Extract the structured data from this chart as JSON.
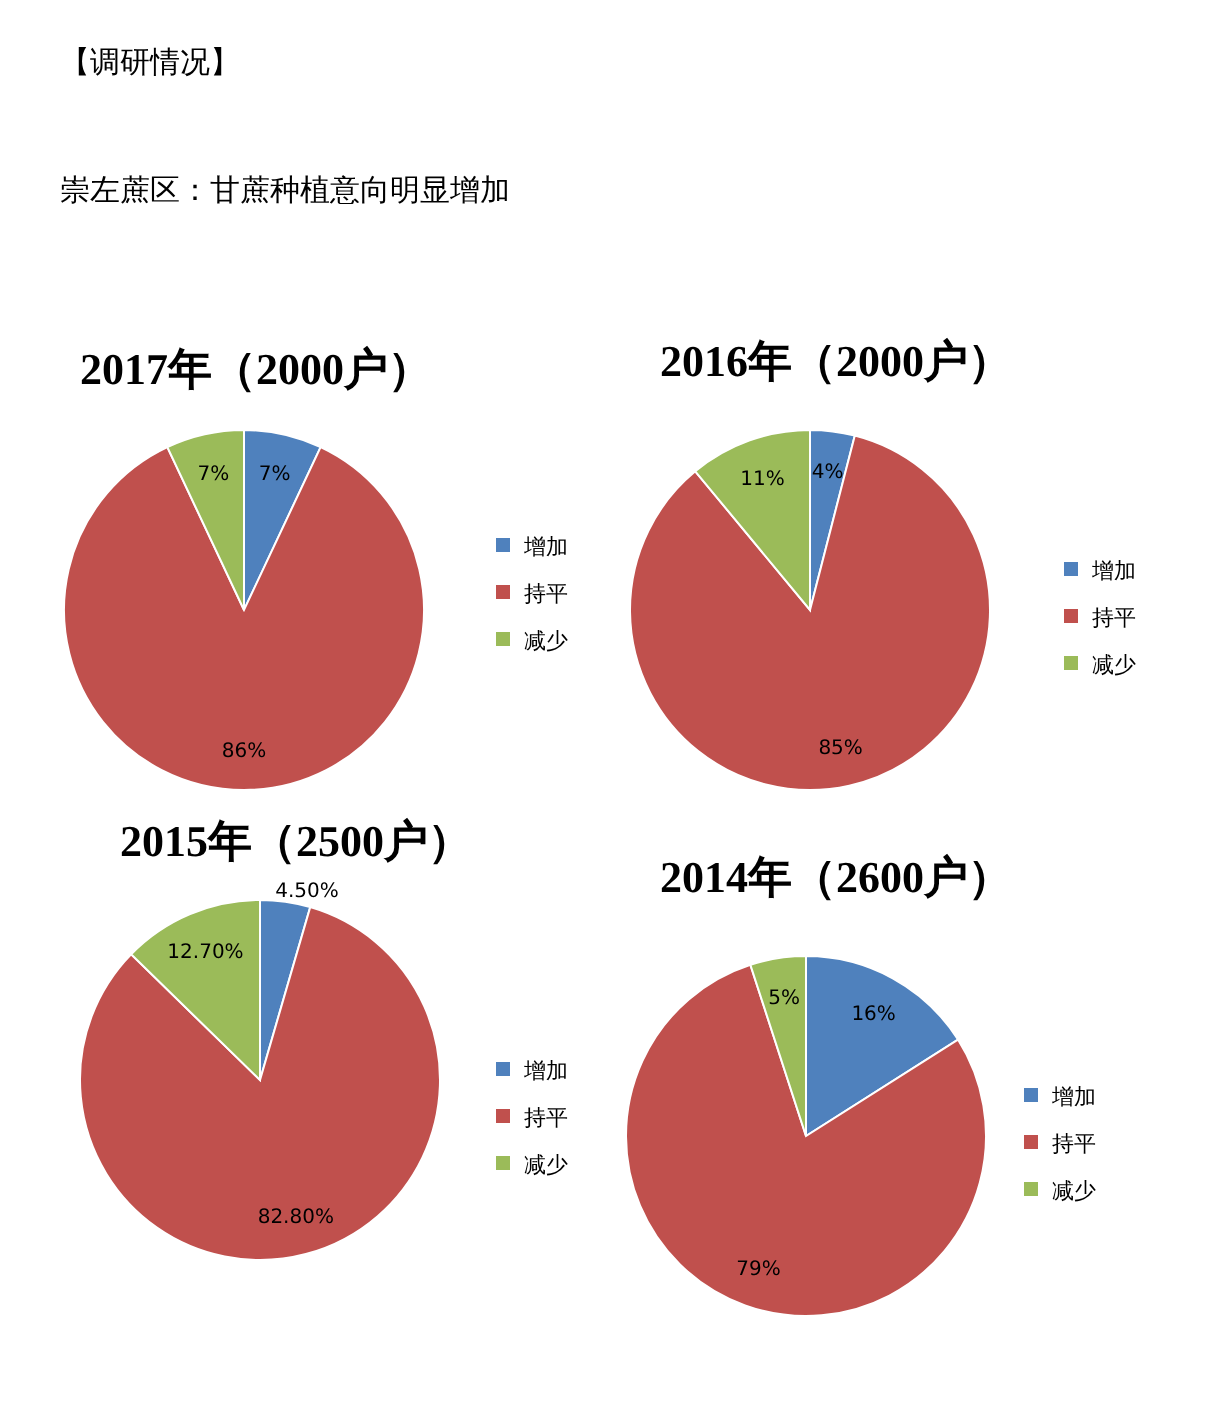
{
  "chart_data": [
    {
      "type": "other",
      "title": "【调研情况】",
      "subtitle": "崇左蔗区：甘蔗种植意向明显增加"
    },
    {
      "type": "pie",
      "title": "2017年（2000户）",
      "categories": [
        "增加",
        "持平",
        "减少"
      ],
      "values": [
        7,
        86,
        7
      ],
      "colors": [
        "#4f81bd",
        "#c0504d",
        "#9bbb59"
      ],
      "value_labels": [
        "7%",
        "86%",
        "7%"
      ],
      "legend": "right"
    },
    {
      "type": "pie",
      "title": "2016年（2000户）",
      "categories": [
        "增加",
        "持平",
        "减少"
      ],
      "values": [
        4,
        85,
        11
      ],
      "colors": [
        "#4f81bd",
        "#c0504d",
        "#9bbb59"
      ],
      "value_labels": [
        "4%",
        "85%",
        "11%"
      ],
      "legend": "right"
    },
    {
      "type": "pie",
      "title": "2015年（2500户）",
      "categories": [
        "增加",
        "持平",
        "减少"
      ],
      "values": [
        4.5,
        82.8,
        12.7
      ],
      "colors": [
        "#4f81bd",
        "#c0504d",
        "#9bbb59"
      ],
      "value_labels": [
        "4.50%",
        "82.80%",
        "12.70%"
      ],
      "legend": "right"
    },
    {
      "type": "pie",
      "title": "2014年（2600户）",
      "categories": [
        "增加",
        "持平",
        "减少"
      ],
      "values": [
        16,
        79,
        5
      ],
      "colors": [
        "#4f81bd",
        "#c0504d",
        "#9bbb59"
      ],
      "value_labels": [
        "16%",
        "79%",
        "5%"
      ],
      "legend": "right"
    }
  ]
}
